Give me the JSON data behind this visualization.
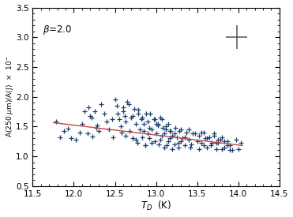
{
  "xlim": [
    11.5,
    14.5
  ],
  "ylim": [
    0.5,
    3.5
  ],
  "point_color": "#1a3f6f",
  "line_color": "#cc4444",
  "errorbar_x": 13.98,
  "errorbar_y": 3.0,
  "errorbar_xerr": 0.13,
  "errorbar_yerr": 0.2,
  "errorbar_color": "#555555",
  "beta_x": 11.62,
  "beta_y": 3.08,
  "line_x0": 11.75,
  "line_x1": 14.05,
  "line_y0": 1.565,
  "line_y1": 1.18,
  "scatter_x": [
    11.78,
    11.83,
    11.88,
    11.93,
    11.97,
    12.02,
    12.07,
    12.1,
    12.13,
    12.17,
    12.2,
    12.23,
    12.27,
    12.3,
    12.18,
    12.22,
    12.25,
    12.28,
    12.33,
    12.37,
    12.4,
    12.43,
    12.47,
    12.5,
    12.48,
    12.52,
    12.53,
    12.55,
    12.57,
    12.58,
    12.6,
    12.62,
    12.63,
    12.65,
    12.6,
    12.63,
    12.67,
    12.68,
    12.7,
    12.72,
    12.73,
    12.75,
    12.77,
    12.78,
    12.72,
    12.75,
    12.78,
    12.8,
    12.82,
    12.83,
    12.85,
    12.87,
    12.88,
    12.9,
    12.83,
    12.85,
    12.87,
    12.9,
    12.92,
    12.93,
    12.95,
    12.97,
    12.98,
    13.0,
    12.92,
    12.95,
    12.98,
    13.0,
    13.02,
    13.03,
    13.05,
    13.07,
    13.08,
    13.1,
    13.02,
    13.05,
    13.07,
    13.1,
    13.12,
    13.13,
    13.15,
    13.17,
    13.18,
    13.2,
    13.12,
    13.15,
    13.17,
    13.2,
    13.22,
    13.23,
    13.25,
    13.27,
    13.28,
    13.3,
    13.22,
    13.27,
    13.3,
    13.32,
    13.35,
    13.37,
    13.4,
    13.42,
    13.45,
    13.35,
    13.4,
    13.43,
    13.47,
    13.5,
    13.52,
    13.55,
    13.58,
    13.6,
    13.52,
    13.55,
    13.58,
    13.62,
    13.65,
    13.68,
    13.7,
    13.73,
    13.75,
    13.62,
    13.67,
    13.7,
    13.73,
    13.78,
    13.8,
    13.83,
    13.87,
    13.9,
    13.75,
    13.8,
    13.83,
    13.87,
    13.9,
    13.93,
    13.97,
    14.0,
    14.03
  ],
  "scatter_y": [
    1.58,
    1.32,
    1.43,
    1.47,
    1.3,
    1.28,
    1.4,
    1.55,
    1.75,
    1.38,
    1.68,
    1.33,
    1.48,
    1.42,
    1.82,
    1.65,
    1.75,
    1.52,
    1.88,
    1.72,
    1.58,
    1.45,
    1.62,
    1.95,
    1.32,
    1.85,
    1.72,
    1.62,
    1.5,
    1.4,
    1.82,
    1.68,
    1.35,
    1.92,
    1.75,
    1.58,
    1.88,
    1.42,
    1.65,
    1.3,
    1.8,
    1.55,
    1.22,
    1.72,
    1.68,
    1.28,
    1.78,
    1.45,
    1.62,
    1.32,
    1.55,
    1.18,
    1.72,
    1.38,
    1.65,
    1.42,
    1.18,
    1.58,
    1.3,
    1.72,
    1.45,
    1.62,
    1.25,
    1.55,
    1.48,
    1.22,
    1.62,
    1.38,
    1.52,
    1.2,
    1.65,
    1.35,
    1.48,
    1.15,
    1.55,
    1.28,
    1.62,
    1.38,
    1.45,
    1.18,
    1.55,
    1.3,
    1.42,
    1.12,
    1.5,
    1.25,
    1.42,
    1.35,
    1.2,
    1.48,
    1.32,
    1.15,
    1.42,
    1.25,
    1.38,
    1.22,
    1.45,
    1.3,
    1.18,
    1.4,
    1.28,
    1.15,
    1.38,
    1.32,
    1.45,
    1.2,
    1.38,
    1.25,
    1.12,
    1.4,
    1.18,
    1.3,
    1.35,
    1.22,
    1.4,
    1.15,
    1.32,
    1.22,
    1.38,
    1.12,
    1.28,
    1.3,
    1.18,
    1.35,
    1.22,
    1.28,
    1.12,
    1.25,
    1.18,
    1.1,
    1.22,
    1.32,
    1.15,
    1.25,
    1.18,
    1.1,
    1.28,
    1.12,
    1.22
  ],
  "background_color": "#ffffff"
}
